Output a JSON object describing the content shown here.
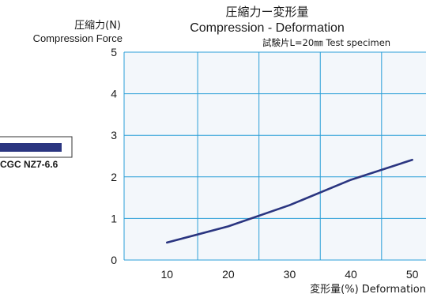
{
  "chart_data": {
    "type": "line",
    "title": "圧縮力ー変形量",
    "subtitle": "Compression - Deformation",
    "note": "試験片L=20㎜ Test specimen",
    "ylabel_jp": "圧縮力(N)",
    "ylabel_en": "Compression Force",
    "xlabel": "変形量(%) Deformation",
    "x_ticks": [
      10,
      20,
      30,
      40,
      50
    ],
    "y_ticks": [
      0,
      1,
      2,
      3,
      4,
      5
    ],
    "xlim": [
      3,
      52.5
    ],
    "ylim": [
      0,
      5
    ],
    "x_grid": [
      15,
      25,
      35,
      45
    ],
    "y_grid": [
      1,
      2,
      3,
      4
    ],
    "grid": true,
    "legend_position": "left",
    "series": [
      {
        "name": "CGC NZ7-6.6",
        "color": "#2a3580",
        "x": [
          10,
          20,
          30,
          40,
          50
        ],
        "y": [
          0.42,
          0.81,
          1.32,
          1.93,
          2.41
        ]
      }
    ]
  },
  "colors": {
    "plot_background": "#f3f7fb",
    "grid": "#2b9fd8",
    "frame": "#2b9fd8",
    "line": "#2a3580"
  }
}
